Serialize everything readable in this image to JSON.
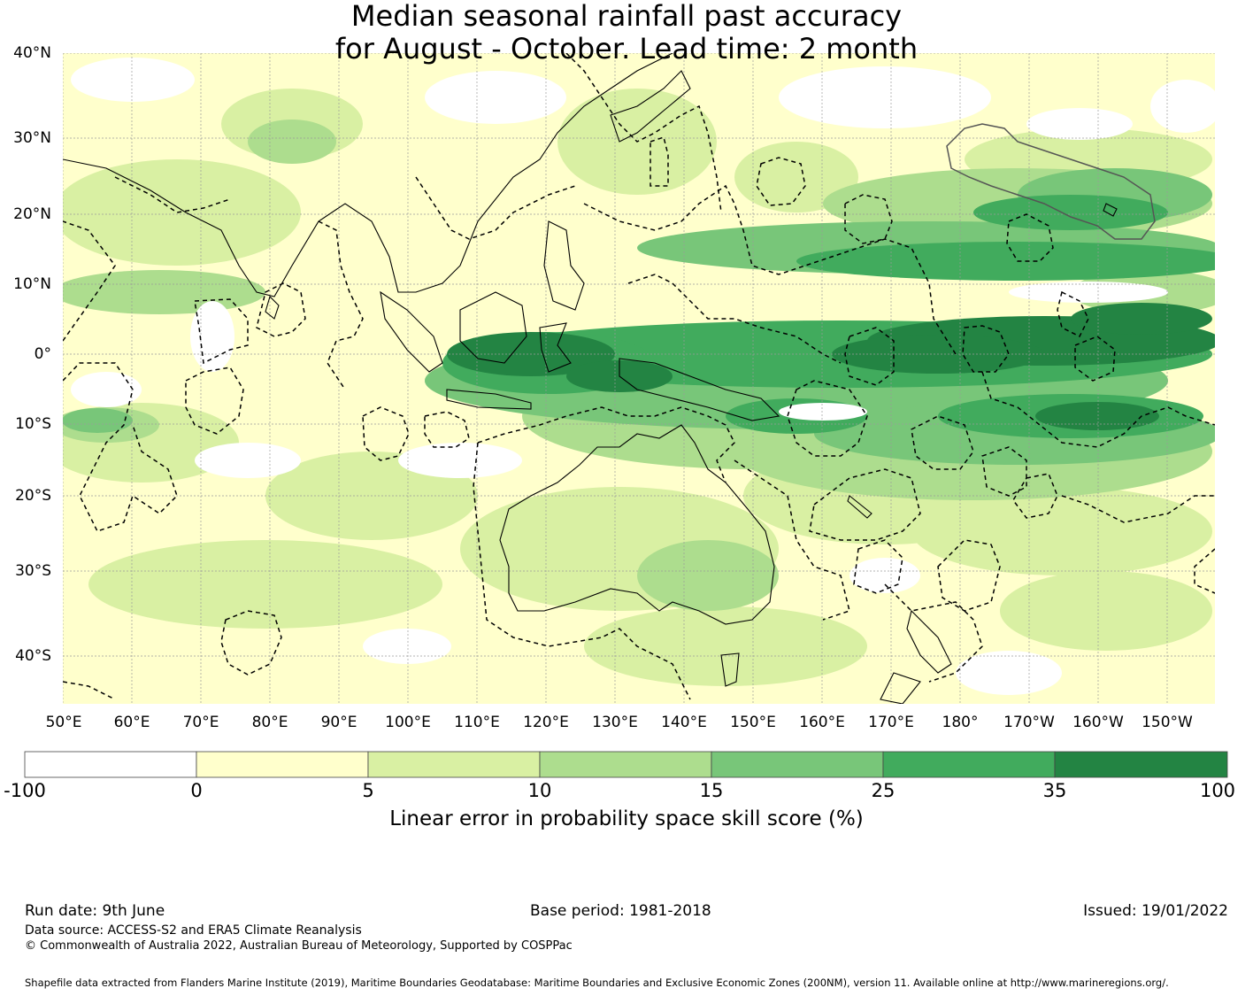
{
  "title": {
    "line1": "Median seasonal rainfall past accuracy",
    "line2": "for August - October. Lead time: 2 month"
  },
  "map": {
    "region": "Western Pacific, Indian Ocean and Australia",
    "lat_labels": [
      "40°N",
      "30°N",
      "20°N",
      "10°N",
      "0°",
      "10°S",
      "20°S",
      "30°S",
      "40°S"
    ],
    "lon_labels": [
      "50°E",
      "60°E",
      "70°E",
      "80°E",
      "90°E",
      "100°E",
      "110°E",
      "120°E",
      "130°E",
      "140°E",
      "150°E",
      "160°E",
      "170°E",
      "180°",
      "170°W",
      "160°W",
      "150°W"
    ],
    "band_colors": {
      "-100_to_0": "#ffffff",
      "0_to_5": "#ffffcc",
      "5_to_10": "#d9f0a3",
      "10_to_15": "#addd8e",
      "15_to_25": "#78c679",
      "25_to_35": "#41ab5d",
      "35_to_100": "#238443"
    },
    "eez_boundary_style": "dashed black",
    "coastline_style": "solid black"
  },
  "colorbar": {
    "tick_labels": [
      "-100",
      "0",
      "5",
      "10",
      "15",
      "25",
      "35",
      "100"
    ],
    "colors": [
      "#ffffff",
      "#ffffcc",
      "#d9f0a3",
      "#addd8e",
      "#78c679",
      "#41ab5d",
      "#238443"
    ],
    "axis_label": "Linear error in probability space skill score (%)"
  },
  "footer": {
    "run_date": "Run date: 9th June",
    "base_period": "Base period: 1981-2018",
    "issued": "Issued: 19/01/2022",
    "data_source": "Data source: ACCESS-S2 and ERA5 Climate Reanalysis",
    "copyright": "© Commonwealth of Australia 2022, Australian Bureau of Meteorology, Supported by COSPPac",
    "shapefile": "Shapefile data extracted from Flanders Marine Institute (2019), Maritime Boundaries Geodatabase: Maritime Boundaries and Exclusive Economic Zones (200NM), version 11. Available online at http://www.marineregions.org/."
  }
}
